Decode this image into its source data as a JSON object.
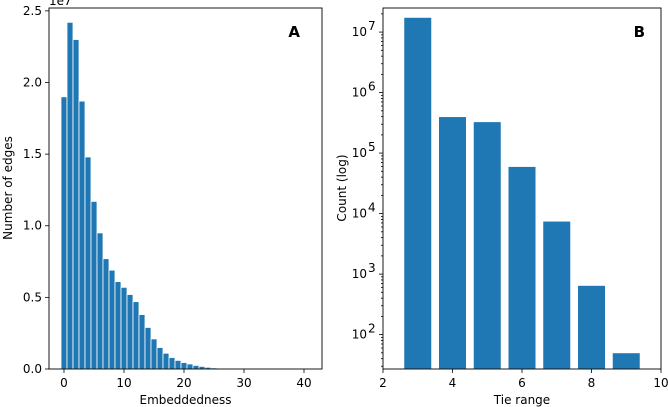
{
  "chart_data": [
    {
      "type": "bar",
      "panel_label": "A",
      "xlabel": "Embeddedness",
      "ylabel": "Number of edges",
      "y_offset_text": "1e7",
      "x": [
        0,
        1,
        2,
        3,
        4,
        5,
        6,
        7,
        8,
        9,
        10,
        11,
        12,
        13,
        14,
        15,
        16,
        17,
        18,
        19,
        20,
        21,
        22,
        23,
        24,
        25,
        26,
        27,
        28,
        29,
        30,
        31,
        32,
        33,
        34,
        35,
        36,
        37,
        38,
        39,
        40
      ],
      "values": [
        1.9,
        2.42,
        2.3,
        1.87,
        1.48,
        1.17,
        0.95,
        0.77,
        0.69,
        0.61,
        0.57,
        0.52,
        0.47,
        0.38,
        0.29,
        0.21,
        0.15,
        0.11,
        0.08,
        0.06,
        0.045,
        0.035,
        0.025,
        0.018,
        0.012,
        0.008,
        0.006,
        0.004,
        0.003,
        0.002,
        0.0015,
        0.001,
        0.0008,
        0.0006,
        0.0005,
        0.0004,
        0.0003,
        0.0002,
        0.0002,
        0.0001,
        0.0001
      ],
      "value_unit": "x 1e7",
      "xlim": [
        -2.5,
        43
      ],
      "ylim": [
        0,
        2.52
      ],
      "xticks": [
        0,
        10,
        20,
        30,
        40
      ],
      "xtick_labels": [
        "0",
        "10",
        "20",
        "30",
        "40"
      ],
      "yticks": [
        0,
        0.5,
        1.0,
        1.5,
        2.0,
        2.5
      ],
      "ytick_labels": [
        "0.0",
        "0.5",
        "1.0",
        "1.5",
        "2.0",
        "2.5"
      ],
      "legend": "none",
      "grid": false
    },
    {
      "type": "bar",
      "panel_label": "B",
      "xlabel": "Tie range",
      "ylabel": "Count (log)",
      "yscale": "log",
      "x": [
        3,
        4,
        5,
        6,
        7,
        8,
        9
      ],
      "values": [
        17500000,
        400000,
        330000,
        60000,
        7500,
        650,
        50
      ],
      "xlim": [
        2,
        10
      ],
      "ylim": [
        27,
        25000000
      ],
      "xticks": [
        2,
        4,
        6,
        8,
        10
      ],
      "xtick_labels": [
        "2",
        "4",
        "6",
        "8",
        "10"
      ],
      "yticks": [
        100,
        1000,
        10000,
        100000,
        1000000,
        10000000
      ],
      "ytick_base": "10",
      "ytick_exponents": [
        "2",
        "3",
        "4",
        "5",
        "6",
        "7"
      ],
      "legend": "none",
      "grid": false
    }
  ]
}
